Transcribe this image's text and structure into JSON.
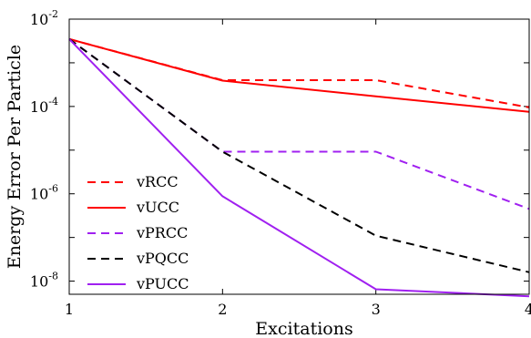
{
  "chart_data": {
    "type": "line",
    "xlabel": "Excitations",
    "ylabel": "Energy Error Per Particle",
    "x": [
      1,
      2,
      3,
      4
    ],
    "xlim": [
      1,
      4
    ],
    "ylim": [
      5e-09,
      0.01
    ],
    "y_scale": "log",
    "x_ticks": [
      "1",
      "2",
      "3",
      "4"
    ],
    "y_ticks": [
      {
        "value": 0.01,
        "base": "10",
        "exp": "-2"
      },
      {
        "value": 0.0001,
        "base": "10",
        "exp": "-4"
      },
      {
        "value": 1e-06,
        "base": "10",
        "exp": "-6"
      },
      {
        "value": 1e-08,
        "base": "10",
        "exp": "-8"
      }
    ],
    "grid": false,
    "legend_position": "bottom-left",
    "series": [
      {
        "name": "vRCC",
        "color": "#ff0000",
        "dash": "dashed",
        "values": [
          0.0035,
          0.0004,
          0.0004,
          9.5e-05
        ]
      },
      {
        "name": "vUCC",
        "color": "#ff0000",
        "dash": "solid",
        "values": [
          0.0035,
          0.00039,
          0.00017,
          7.5e-05
        ]
      },
      {
        "name": "vPRCC",
        "color": "#a020f0",
        "dash": "dashed",
        "values": [
          0.0035,
          9.2e-06,
          9.2e-06,
          4.5e-07
        ]
      },
      {
        "name": "vPQCC",
        "color": "#000000",
        "dash": "dashed",
        "values": [
          0.0035,
          9.2e-06,
          1.1e-07,
          1.6e-08
        ]
      },
      {
        "name": "vPUCC",
        "color": "#a020f0",
        "dash": "solid",
        "values": [
          0.0035,
          8.8e-07,
          6.5e-09,
          4.5e-09
        ]
      }
    ]
  }
}
